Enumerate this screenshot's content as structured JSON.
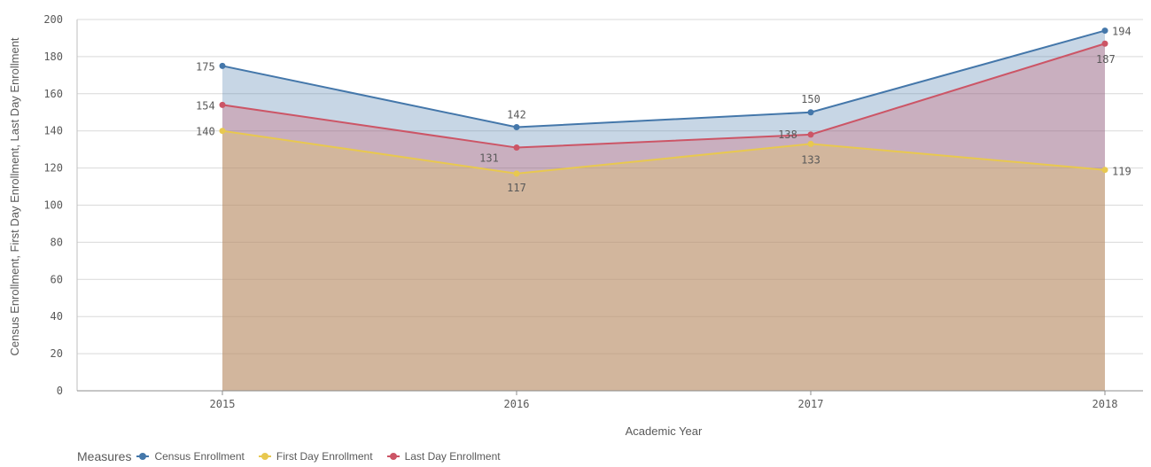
{
  "chart_data": {
    "type": "area",
    "xlabel": "Academic Year",
    "ylabel": "Census Enrollment, First Day Enrollment, Last Day Enrollment",
    "categories": [
      "2015",
      "2016",
      "2017",
      "2018"
    ],
    "ylim": [
      0,
      200
    ],
    "yticks": [
      "0",
      "20",
      "40",
      "60",
      "80",
      "100",
      "120",
      "140",
      "160",
      "180",
      "200"
    ],
    "grid": true,
    "legend_position": "bottom-left",
    "legend_title": "Measures",
    "series": [
      {
        "name": "Census Enrollment",
        "values": [
          175,
          142,
          150,
          194
        ],
        "color": "#4477aa"
      },
      {
        "name": "First Day Enrollment",
        "values": [
          140,
          117,
          133,
          119
        ],
        "color": "#e8c84f"
      },
      {
        "name": "Last Day Enrollment",
        "values": [
          154,
          131,
          138,
          187
        ],
        "color": "#cc5566"
      }
    ]
  }
}
